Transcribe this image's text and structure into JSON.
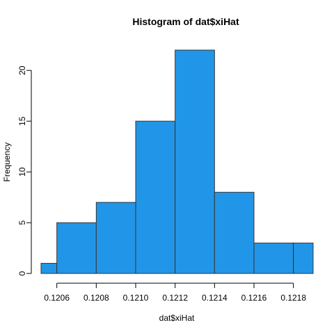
{
  "chart_data": {
    "type": "bar",
    "title": "Histogram of dat$xiHat",
    "xlabel": "dat$xiHat",
    "ylabel": "Frequency",
    "bins": [
      {
        "start": 0.12052,
        "end": 0.1206,
        "count": 1
      },
      {
        "start": 0.1206,
        "end": 0.1208,
        "count": 5
      },
      {
        "start": 0.1208,
        "end": 0.121,
        "count": 7
      },
      {
        "start": 0.121,
        "end": 0.1212,
        "count": 15
      },
      {
        "start": 0.1212,
        "end": 0.1214,
        "count": 22
      },
      {
        "start": 0.1214,
        "end": 0.1216,
        "count": 8
      },
      {
        "start": 0.1216,
        "end": 0.1218,
        "count": 3
      },
      {
        "start": 0.1218,
        "end": 0.1219,
        "count": 3
      }
    ],
    "xlim": [
      0.12052,
      0.1219
    ],
    "ylim": [
      0,
      22
    ],
    "x_ticks": [
      "0.1206",
      "0.1208",
      "0.1210",
      "0.1212",
      "0.1214",
      "0.1216",
      "0.1218"
    ],
    "y_ticks": [
      0,
      5,
      10,
      15,
      20
    ],
    "bar_color": "#2196E8",
    "bar_border": "#333333",
    "grid": false,
    "legend": "none"
  }
}
